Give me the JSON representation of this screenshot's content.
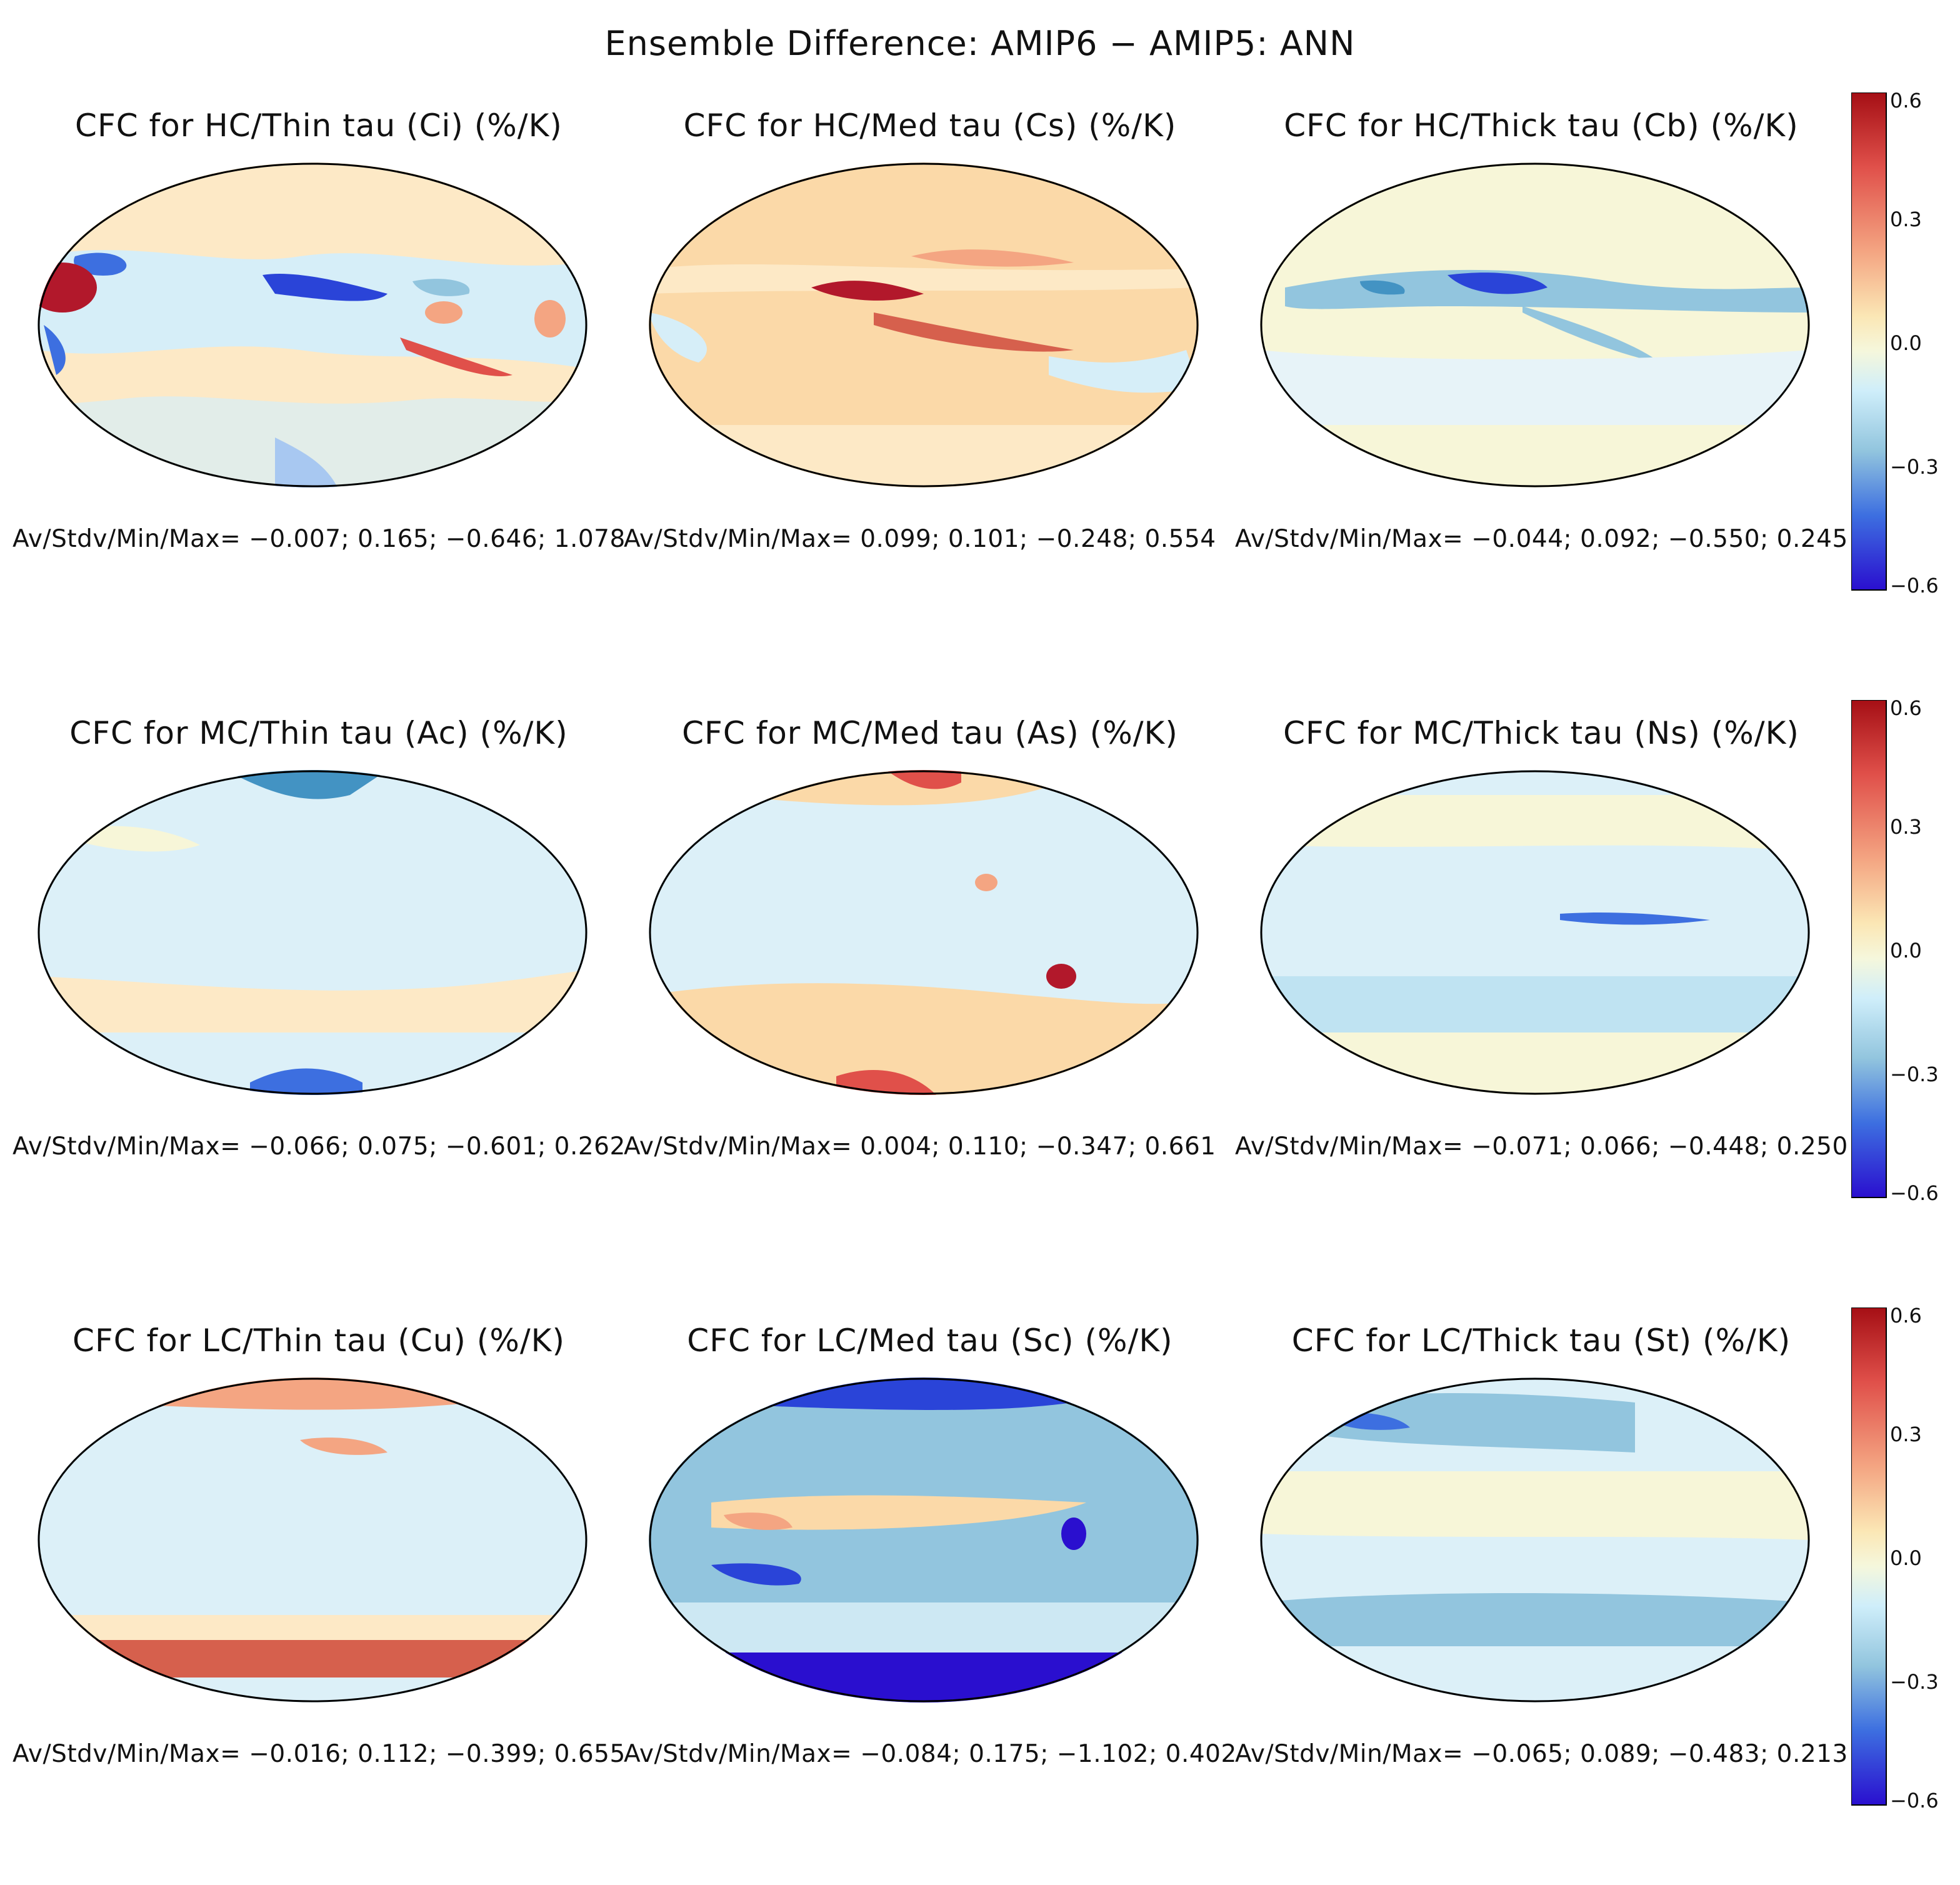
{
  "title": "Ensemble Difference: AMIP6 − AMIP5: ANN",
  "stats_label": "Av/Stdv/Min/Max=",
  "colorbar_ticks": [
    "0.6",
    "0.3",
    "0.0",
    "−0.3",
    "−0.6"
  ],
  "colors": {
    "dark_red": "#b2182b",
    "red": "#e0504a",
    "orange": "#f4a582",
    "light_orange": "#fddbc7",
    "neutral": "#f7f6d8",
    "light_blue": "#d1ecf7",
    "blue": "#92c5de",
    "mid_blue": "#4393c3",
    "dark_blue": "#2c1fc9"
  },
  "panels": [
    {
      "title": "CFC for HC/Thin tau (Ci) (%/K)",
      "av": "−0.007;",
      "stdv": "0.165;",
      "min": "−0.646;",
      "max": "1.078"
    },
    {
      "title": "CFC for HC/Med tau (Cs) (%/K)",
      "av": "0.099;",
      "stdv": "0.101;",
      "min": "−0.248;",
      "max": "0.554"
    },
    {
      "title": "CFC for HC/Thick tau (Cb) (%/K)",
      "av": "−0.044;",
      "stdv": "0.092;",
      "min": "−0.550;",
      "max": "0.245"
    },
    {
      "title": "CFC for MC/Thin tau (Ac) (%/K)",
      "av": "−0.066;",
      "stdv": "0.075;",
      "min": "−0.601;",
      "max": "0.262"
    },
    {
      "title": "CFC for MC/Med tau (As) (%/K)",
      "av": "0.004;",
      "stdv": "0.110;",
      "min": "−0.347;",
      "max": "0.661"
    },
    {
      "title": "CFC for MC/Thick tau (Ns) (%/K)",
      "av": "−0.071;",
      "stdv": "0.066;",
      "min": "−0.448;",
      "max": "0.250"
    },
    {
      "title": "CFC for LC/Thin tau (Cu) (%/K)",
      "av": "−0.016;",
      "stdv": "0.112;",
      "min": "−0.399;",
      "max": "0.655"
    },
    {
      "title": "CFC for LC/Med tau (Sc) (%/K)",
      "av": "−0.084;",
      "stdv": "0.175;",
      "min": "−1.102;",
      "max": "0.402"
    },
    {
      "title": "CFC for LC/Thick tau (St) (%/K)",
      "av": "−0.065;",
      "stdv": "0.089;",
      "min": "−0.483;",
      "max": "0.213"
    }
  ]
}
